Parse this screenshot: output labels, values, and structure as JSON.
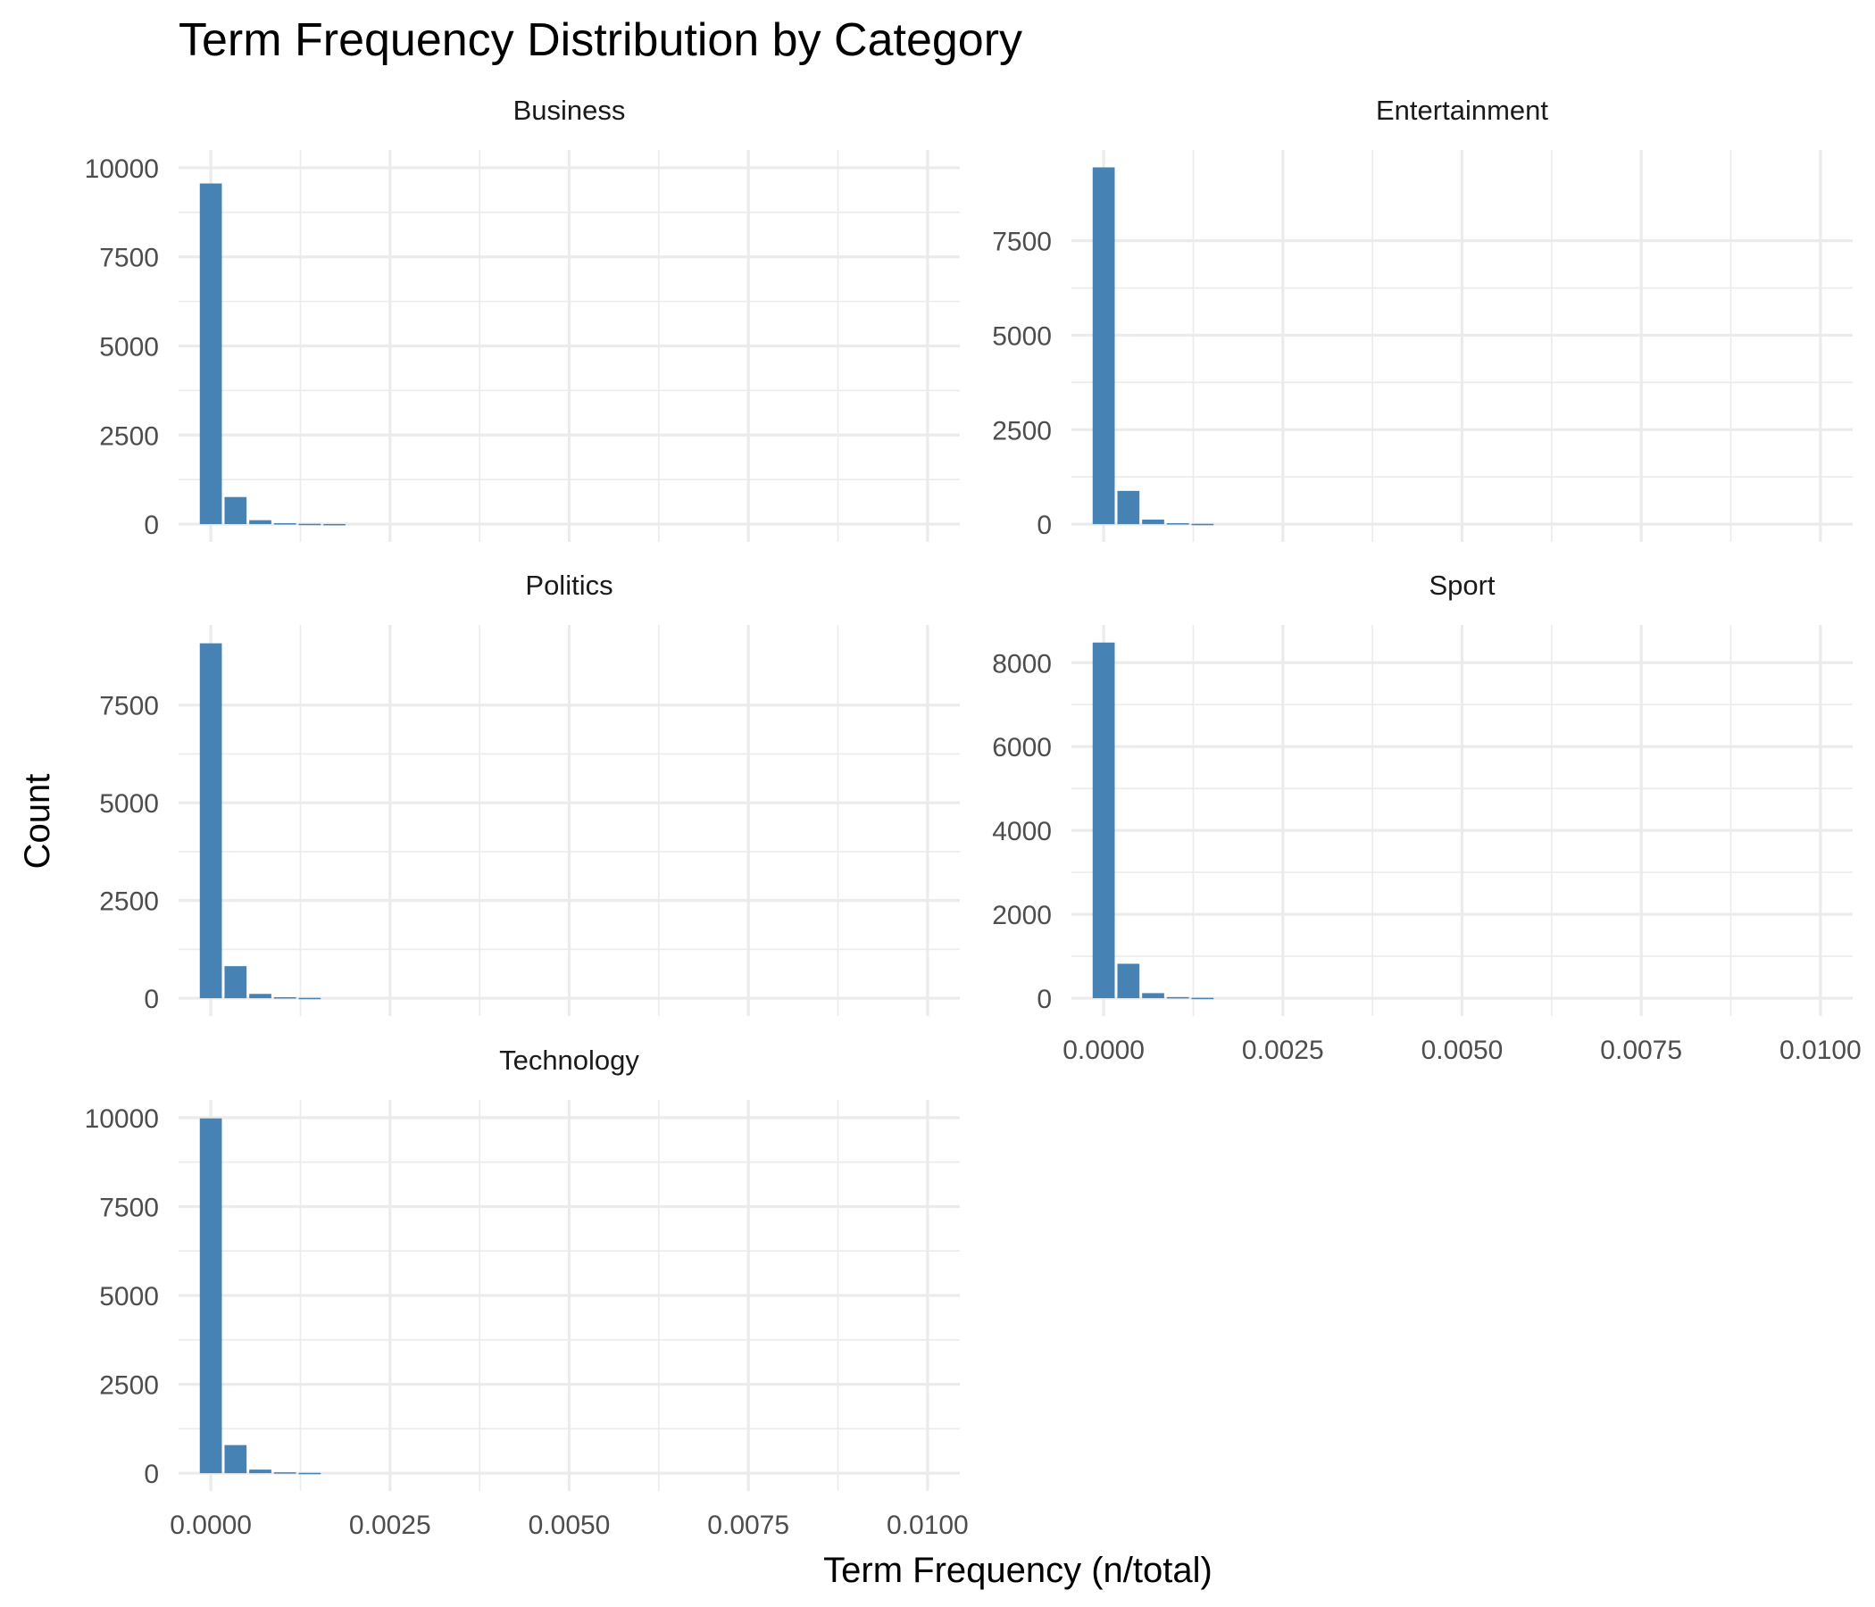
{
  "chart_data": {
    "type": "bar",
    "title": "Term Frequency Distribution by Category",
    "xlabel": "Term Frequency (n/total)",
    "ylabel": "Count",
    "bar_color": "#4682B4",
    "grid": true,
    "xlim": [
      -0.00045,
      0.01045
    ],
    "x_ticks": [
      0.0,
      0.0025,
      0.005,
      0.0075,
      0.01
    ],
    "x_tick_labels": [
      "0.0000",
      "0.0025",
      "0.0050",
      "0.0075",
      "0.0100"
    ],
    "bin_width": 0.000345,
    "panels": [
      {
        "name": "Business",
        "ylim": [
          -500,
          10500
        ],
        "y_ticks": [
          0,
          2500,
          5000,
          7500,
          10000
        ],
        "y_tick_labels": [
          "0",
          "2500",
          "5000",
          "7500",
          "10000"
        ],
        "bins": [
          {
            "x": 0.0,
            "count": 9560
          },
          {
            "x": 0.000345,
            "count": 760
          },
          {
            "x": 0.00069,
            "count": 110
          },
          {
            "x": 0.001035,
            "count": 25
          },
          {
            "x": 0.00138,
            "count": 8
          },
          {
            "x": 0.001725,
            "count": 3
          }
        ]
      },
      {
        "name": "Entertainment",
        "ylim": [
          -470,
          9900
        ],
        "y_ticks": [
          0,
          2500,
          5000,
          7500
        ],
        "y_tick_labels": [
          "0",
          "2500",
          "5000",
          "7500"
        ],
        "bins": [
          {
            "x": 0.0,
            "count": 9440
          },
          {
            "x": 0.000345,
            "count": 880
          },
          {
            "x": 0.00069,
            "count": 120
          },
          {
            "x": 0.001035,
            "count": 25
          },
          {
            "x": 0.00138,
            "count": 8
          }
        ]
      },
      {
        "name": "Politics",
        "ylim": [
          -455,
          9550
        ],
        "y_ticks": [
          0,
          2500,
          5000,
          7500
        ],
        "y_tick_labels": [
          "0",
          "2500",
          "5000",
          "7500"
        ],
        "bins": [
          {
            "x": 0.0,
            "count": 9080
          },
          {
            "x": 0.000345,
            "count": 820
          },
          {
            "x": 0.00069,
            "count": 110
          },
          {
            "x": 0.001035,
            "count": 25
          },
          {
            "x": 0.00138,
            "count": 8
          }
        ]
      },
      {
        "name": "Sport",
        "ylim": [
          -425,
          8900
        ],
        "y_ticks": [
          0,
          2000,
          4000,
          6000,
          8000
        ],
        "y_tick_labels": [
          "0",
          "2000",
          "4000",
          "6000",
          "8000"
        ],
        "bins": [
          {
            "x": 0.0,
            "count": 8480
          },
          {
            "x": 0.000345,
            "count": 820
          },
          {
            "x": 0.00069,
            "count": 120
          },
          {
            "x": 0.001035,
            "count": 25
          },
          {
            "x": 0.00138,
            "count": 8
          }
        ]
      },
      {
        "name": "Technology",
        "ylim": [
          -500,
          10500
        ],
        "y_ticks": [
          0,
          2500,
          5000,
          7500,
          10000
        ],
        "y_tick_labels": [
          "0",
          "2500",
          "5000",
          "7500",
          "10000"
        ],
        "bins": [
          {
            "x": 0.0,
            "count": 9980
          },
          {
            "x": 0.000345,
            "count": 790
          },
          {
            "x": 0.00069,
            "count": 100
          },
          {
            "x": 0.001035,
            "count": 25
          },
          {
            "x": 0.00138,
            "count": 8
          }
        ]
      }
    ]
  }
}
